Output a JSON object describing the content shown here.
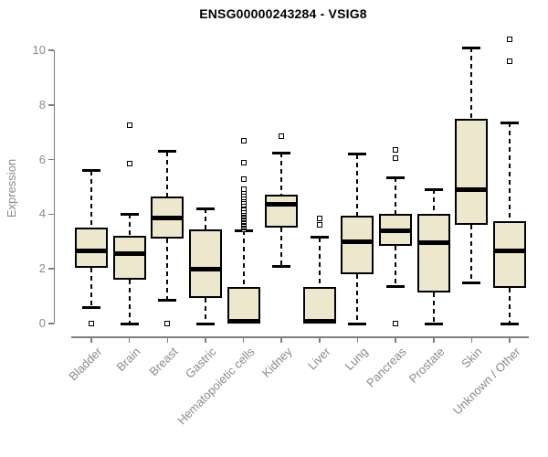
{
  "title": "ENSG00000243284 - VSIG8",
  "chart_data": {
    "type": "boxplot",
    "title": "ENSG00000243284 - VSIG8",
    "ylabel": "Expression",
    "xlabel": "",
    "ylim": [
      0,
      10.5
    ],
    "yticks": [
      0,
      2,
      4,
      6,
      8,
      10
    ],
    "grid": false,
    "legend": "none",
    "categories": [
      "Bladder",
      "Brain",
      "Breast",
      "Gastric",
      "Hematopoietic cells",
      "Kidney",
      "Liver",
      "Lung",
      "Pancreas",
      "Prostate",
      "Skin",
      "Unknown / Other"
    ],
    "series": [
      {
        "category": "Bladder",
        "whisker_low": 0.6,
        "q1": 2.05,
        "median": 2.65,
        "q3": 3.5,
        "whisker_high": 5.6,
        "outliers": [
          0
        ]
      },
      {
        "category": "Brain",
        "whisker_low": 0.0,
        "q1": 1.6,
        "median": 2.55,
        "q3": 3.2,
        "whisker_high": 4.0,
        "outliers": [
          5.85,
          7.25
        ]
      },
      {
        "category": "Breast",
        "whisker_low": 0.85,
        "q1": 3.1,
        "median": 3.85,
        "q3": 4.65,
        "whisker_high": 6.3,
        "outliers": [
          0
        ]
      },
      {
        "category": "Gastric",
        "whisker_low": 0.0,
        "q1": 0.95,
        "median": 2.0,
        "q3": 3.45,
        "whisker_high": 4.2,
        "outliers": []
      },
      {
        "category": "Hematopoietic cells",
        "whisker_low": 0.0,
        "q1": 0.0,
        "median": 0.08,
        "q3": 1.35,
        "whisker_high": 3.4,
        "outliers": [
          3.45,
          3.5,
          3.55,
          3.6,
          3.65,
          3.7,
          3.75,
          3.8,
          3.85,
          3.9,
          3.95,
          4.0,
          4.05,
          4.1,
          4.2,
          4.3,
          4.35,
          4.45,
          4.55,
          4.6,
          4.7,
          4.8,
          4.9,
          5.3,
          5.9,
          6.7
        ]
      },
      {
        "category": "Kidney",
        "whisker_low": 2.1,
        "q1": 3.5,
        "median": 4.35,
        "q3": 4.7,
        "whisker_high": 6.25,
        "outliers": [
          6.85
        ]
      },
      {
        "category": "Liver",
        "whisker_low": 0.0,
        "q1": 0.0,
        "median": 0.08,
        "q3": 1.35,
        "whisker_high": 3.15,
        "outliers": [
          3.6,
          3.85
        ]
      },
      {
        "category": "Lung",
        "whisker_low": 0.0,
        "q1": 1.8,
        "median": 3.0,
        "q3": 3.95,
        "whisker_high": 6.2,
        "outliers": []
      },
      {
        "category": "Pancreas",
        "whisker_low": 1.35,
        "q1": 2.85,
        "median": 3.4,
        "q3": 4.0,
        "whisker_high": 5.35,
        "outliers": [
          0,
          6.05,
          6.35
        ]
      },
      {
        "category": "Prostate",
        "whisker_low": 0.0,
        "q1": 1.15,
        "median": 2.95,
        "q3": 4.0,
        "whisker_high": 4.9,
        "outliers": []
      },
      {
        "category": "Skin",
        "whisker_low": 1.5,
        "q1": 3.6,
        "median": 4.9,
        "q3": 7.5,
        "whisker_high": 10.1,
        "outliers": []
      },
      {
        "category": "Unknown / Other",
        "whisker_low": 0.0,
        "q1": 1.3,
        "median": 2.65,
        "q3": 3.75,
        "whisker_high": 7.35,
        "outliers": [
          9.6,
          10.4
        ]
      }
    ],
    "colors": {
      "box_fill": "#EDE8CD",
      "box_border": "#000000",
      "median": "#000000",
      "whisker": "#000000",
      "axis": "#7f7f7f",
      "tick_text": "#8a8a8a",
      "title_text": "#000000",
      "background": "#ffffff"
    }
  }
}
